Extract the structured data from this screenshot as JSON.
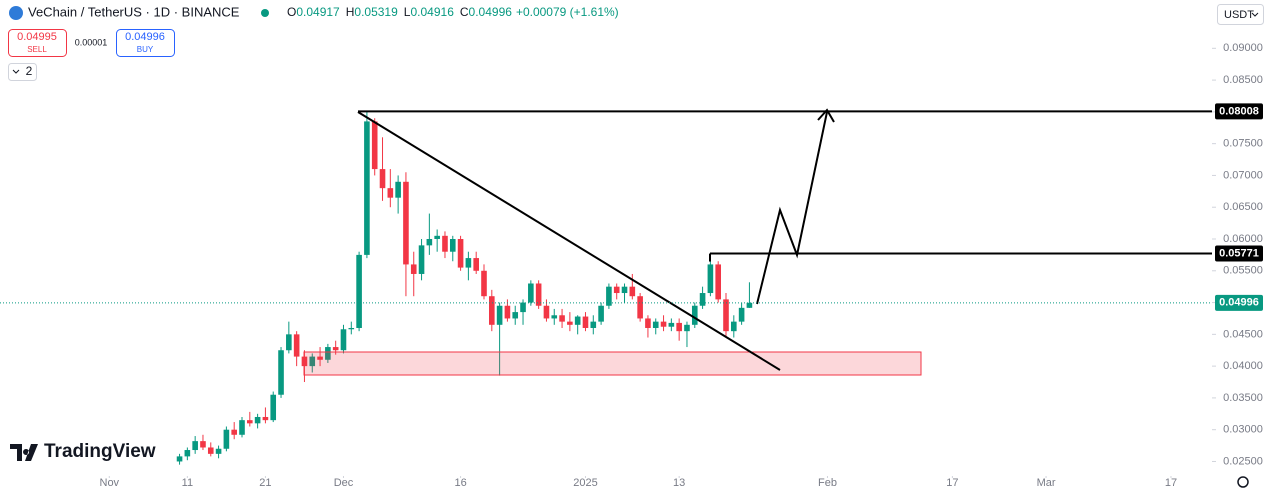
{
  "header": {
    "symbol": "VeChain / TetherUS · 1D · BINANCE",
    "ohlc": [
      {
        "label": "O",
        "value": 0.04917
      },
      {
        "label": "H",
        "value": 0.05319
      },
      {
        "label": "L",
        "value": 0.04916
      },
      {
        "label": "C",
        "value": 0.04996
      }
    ],
    "change": "+0.00079 (+1.61%)",
    "sell": {
      "price": 0.04995,
      "label": "SELL"
    },
    "spread": 1e-05,
    "buy": {
      "price": 0.04996,
      "label": "BUY"
    },
    "indicators_count": 2,
    "currency": "USDT"
  },
  "branding": "TradingView",
  "chart_data": {
    "type": "candlestick",
    "x": [
      "2024-11-10",
      "2024-11-11",
      "2024-11-12",
      "2024-11-13",
      "2024-11-14",
      "2024-11-15",
      "2024-11-16",
      "2024-11-17",
      "2024-11-18",
      "2024-11-19",
      "2024-11-20",
      "2024-11-21",
      "2024-11-22",
      "2024-11-23",
      "2024-11-24",
      "2024-11-25",
      "2024-11-26",
      "2024-11-27",
      "2024-11-28",
      "2024-11-29",
      "2024-11-30",
      "2024-12-01",
      "2024-12-02",
      "2024-12-03",
      "2024-12-04",
      "2024-12-05",
      "2024-12-06",
      "2024-12-07",
      "2024-12-08",
      "2024-12-09",
      "2024-12-10",
      "2024-12-11",
      "2024-12-12",
      "2024-12-13",
      "2024-12-14",
      "2024-12-15",
      "2024-12-16",
      "2024-12-17",
      "2024-12-18",
      "2024-12-19",
      "2024-12-20",
      "2024-12-21",
      "2024-12-22",
      "2024-12-23",
      "2024-12-24",
      "2024-12-25",
      "2024-12-26",
      "2024-12-27",
      "2024-12-28",
      "2024-12-29",
      "2024-12-30",
      "2024-12-31",
      "2025-01-01",
      "2025-01-02",
      "2025-01-03",
      "2025-01-04",
      "2025-01-05",
      "2025-01-06",
      "2025-01-07",
      "2025-01-08",
      "2025-01-09",
      "2025-01-10",
      "2025-01-11",
      "2025-01-12",
      "2025-01-13",
      "2025-01-14",
      "2025-01-15",
      "2025-01-16",
      "2025-01-17",
      "2025-01-18",
      "2025-01-19",
      "2025-01-20",
      "2025-01-21",
      "2025-01-22"
    ],
    "open": [
      0.025,
      0.0258,
      0.0268,
      0.0282,
      0.0272,
      0.0262,
      0.027,
      0.03,
      0.0292,
      0.0315,
      0.031,
      0.032,
      0.0315,
      0.0355,
      0.0425,
      0.045,
      0.0415,
      0.04,
      0.0415,
      0.041,
      0.043,
      0.0425,
      0.0458,
      0.046,
      0.0575,
      0.0785,
      0.071,
      0.068,
      0.0665,
      0.069,
      0.056,
      0.0545,
      0.059,
      0.06,
      0.0605,
      0.058,
      0.06,
      0.0555,
      0.057,
      0.055,
      0.051,
      0.0465,
      0.0495,
      0.0475,
      0.0485,
      0.05,
      0.053,
      0.0495,
      0.0475,
      0.048,
      0.047,
      0.0465,
      0.0478,
      0.046,
      0.047,
      0.0495,
      0.0525,
      0.0515,
      0.0525,
      0.051,
      0.0475,
      0.046,
      0.047,
      0.0462,
      0.0468,
      0.0455,
      0.0465,
      0.0495,
      0.0515,
      0.056,
      0.0505,
      0.0455,
      0.047,
      0.04917
    ],
    "high": [
      0.0262,
      0.0272,
      0.029,
      0.0292,
      0.028,
      0.0275,
      0.0305,
      0.0312,
      0.032,
      0.0328,
      0.0325,
      0.0335,
      0.036,
      0.043,
      0.047,
      0.0455,
      0.0425,
      0.042,
      0.043,
      0.0435,
      0.044,
      0.0465,
      0.047,
      0.058,
      0.08,
      0.079,
      0.076,
      0.071,
      0.07,
      0.0705,
      0.058,
      0.06,
      0.064,
      0.0615,
      0.0612,
      0.0605,
      0.0605,
      0.058,
      0.058,
      0.056,
      0.052,
      0.05,
      0.0505,
      0.0495,
      0.0505,
      0.0535,
      0.0535,
      0.0505,
      0.049,
      0.049,
      0.0485,
      0.048,
      0.0485,
      0.048,
      0.05,
      0.053,
      0.053,
      0.053,
      0.0545,
      0.0515,
      0.048,
      0.0475,
      0.048,
      0.0475,
      0.0475,
      0.047,
      0.05,
      0.0525,
      0.0575,
      0.0565,
      0.0515,
      0.048,
      0.05,
      0.05319
    ],
    "low": [
      0.0245,
      0.0252,
      0.0262,
      0.0268,
      0.0258,
      0.0255,
      0.0266,
      0.0285,
      0.0288,
      0.0305,
      0.0302,
      0.031,
      0.0312,
      0.035,
      0.042,
      0.04,
      0.0375,
      0.039,
      0.04,
      0.0405,
      0.0418,
      0.042,
      0.045,
      0.0455,
      0.057,
      0.07,
      0.066,
      0.065,
      0.064,
      0.051,
      0.051,
      0.0535,
      0.0575,
      0.058,
      0.057,
      0.0565,
      0.055,
      0.0535,
      0.0545,
      0.0505,
      0.0455,
      0.0385,
      0.047,
      0.0465,
      0.0465,
      0.0495,
      0.049,
      0.047,
      0.0465,
      0.046,
      0.0455,
      0.045,
      0.0455,
      0.045,
      0.0465,
      0.049,
      0.0505,
      0.05,
      0.0505,
      0.047,
      0.0445,
      0.045,
      0.0455,
      0.0455,
      0.044,
      0.043,
      0.046,
      0.049,
      0.051,
      0.05,
      0.0445,
      0.0445,
      0.0465,
      0.04916
    ],
    "close": [
      0.0258,
      0.0268,
      0.0282,
      0.0272,
      0.0262,
      0.027,
      0.03,
      0.0292,
      0.0315,
      0.031,
      0.032,
      0.0315,
      0.0355,
      0.0425,
      0.045,
      0.0415,
      0.04,
      0.0415,
      0.041,
      0.043,
      0.0425,
      0.0458,
      0.046,
      0.0575,
      0.0785,
      0.071,
      0.068,
      0.0665,
      0.069,
      0.056,
      0.0545,
      0.059,
      0.06,
      0.0605,
      0.058,
      0.06,
      0.0555,
      0.057,
      0.055,
      0.051,
      0.0465,
      0.0495,
      0.0475,
      0.0485,
      0.05,
      0.053,
      0.0495,
      0.0475,
      0.048,
      0.047,
      0.0465,
      0.0478,
      0.046,
      0.047,
      0.0495,
      0.0525,
      0.0515,
      0.0525,
      0.051,
      0.0475,
      0.046,
      0.047,
      0.0462,
      0.0468,
      0.0455,
      0.0465,
      0.0495,
      0.0515,
      0.056,
      0.0505,
      0.0455,
      0.047,
      0.04917,
      0.04996
    ],
    "up_color": "#089981",
    "down_color": "#f23645",
    "xlim": [
      "2024-10-18",
      "2025-03-22"
    ],
    "xticks": [
      {
        "value": "2024-11-01",
        "label": "Nov"
      },
      {
        "value": "2024-11-11",
        "label": "11"
      },
      {
        "value": "2024-11-21",
        "label": "21"
      },
      {
        "value": "2024-12-01",
        "label": "Dec"
      },
      {
        "value": "2024-12-16",
        "label": "16"
      },
      {
        "value": "2025-01-01",
        "label": "2025"
      },
      {
        "value": "2025-01-13",
        "label": "13"
      },
      {
        "value": "2025-02-01",
        "label": "Feb"
      },
      {
        "value": "2025-02-17",
        "label": "17"
      },
      {
        "value": "2025-03-01",
        "label": "Mar"
      },
      {
        "value": "2025-03-17",
        "label": "17"
      }
    ],
    "ylim": [
      0.0224,
      0.0976
    ],
    "yticks": [
      {
        "value": 0.025,
        "label": "0.02500"
      },
      {
        "value": 0.03,
        "label": "0.03000"
      },
      {
        "value": 0.035,
        "label": "0.03500"
      },
      {
        "value": 0.04,
        "label": "0.04000"
      },
      {
        "value": 0.045,
        "label": "0.04500"
      },
      {
        "value": 0.05,
        "label": "0.05000"
      },
      {
        "value": 0.055,
        "label": "0.05500"
      },
      {
        "value": 0.06,
        "label": "0.06000"
      },
      {
        "value": 0.065,
        "label": "0.06500"
      },
      {
        "value": 0.07,
        "label": "0.07000"
      },
      {
        "value": 0.075,
        "label": "0.07500"
      },
      {
        "value": 0.08,
        "label": "0.08000"
      },
      {
        "value": 0.085,
        "label": "0.08500"
      },
      {
        "value": 0.09,
        "label": "0.09000"
      }
    ],
    "price_lines": [
      {
        "value": 0.08008,
        "color": "#000000"
      },
      {
        "value": 0.05771,
        "color": "#000000"
      }
    ],
    "last_price": {
      "value": 0.04996,
      "color": "#089981"
    }
  }
}
